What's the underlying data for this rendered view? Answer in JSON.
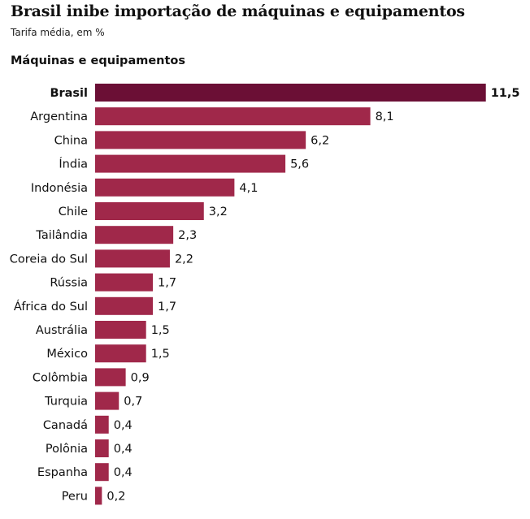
{
  "title": "Brasil inibe importação de máquinas e equipamentos",
  "subtitle": "Tarifa média, em %",
  "section_title": "Máquinas e equipamentos",
  "colors": {
    "bar": "#a0284a",
    "highlight_bar": "#6b0f35"
  },
  "chart_data": {
    "type": "bar",
    "orientation": "horizontal",
    "title": "Máquinas e equipamentos",
    "highlight": "Brasil",
    "categories": [
      "Brasil",
      "Argentina",
      "China",
      "Índia",
      "Indonésia",
      "Chile",
      "Tailândia",
      "Coreia do Sul",
      "Rússia",
      "África do Sul",
      "Austrália",
      "México",
      "Colômbia",
      "Turquia",
      "Canadá",
      "Polônia",
      "Espanha",
      "Peru"
    ],
    "values": [
      11.5,
      8.1,
      6.2,
      5.6,
      4.1,
      3.2,
      2.3,
      2.2,
      1.7,
      1.7,
      1.5,
      1.5,
      0.9,
      0.7,
      0.4,
      0.4,
      0.4,
      0.2
    ],
    "value_labels": [
      "11,5",
      "8,1",
      "6,2",
      "5,6",
      "4,1",
      "3,2",
      "2,3",
      "2,2",
      "1,7",
      "1,7",
      "1,5",
      "1,5",
      "0,9",
      "0,7",
      "0,4",
      "0,4",
      "0,4",
      "0,2"
    ]
  }
}
